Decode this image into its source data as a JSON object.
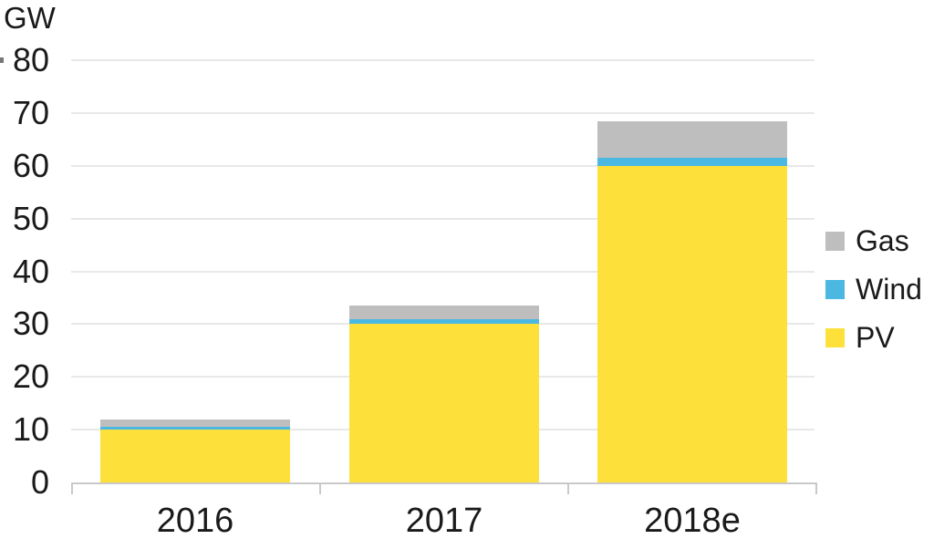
{
  "chart_data": {
    "type": "bar",
    "stacked": true,
    "title": "",
    "ylabel": "GW",
    "xlabel": "",
    "ylim": [
      0,
      80
    ],
    "y_ticks": [
      0,
      10,
      20,
      30,
      40,
      50,
      60,
      70,
      80
    ],
    "categories": [
      "2016",
      "2017",
      "2018e"
    ],
    "series": [
      {
        "name": "PV",
        "color": "#FDE03A",
        "values": [
          10,
          30,
          60
        ]
      },
      {
        "name": "Wind",
        "color": "#4BB8E2",
        "values": [
          0.5,
          1,
          1.5
        ]
      },
      {
        "name": "Gas",
        "color": "#BEBEBE",
        "values": [
          1.5,
          2.5,
          7
        ]
      }
    ],
    "totals": [
      12,
      33.5,
      68.5
    ],
    "grid": true,
    "legend": {
      "position": "right",
      "items": [
        "Gas",
        "Wind",
        "PV"
      ]
    },
    "colors": {
      "gridline": "#E8E8E8",
      "axis_line": "#C9C9C9",
      "tick": "#C9C9C9",
      "edge_tick": "#777777",
      "text": "#1A1A1A",
      "background": "#FFFFFF"
    }
  }
}
